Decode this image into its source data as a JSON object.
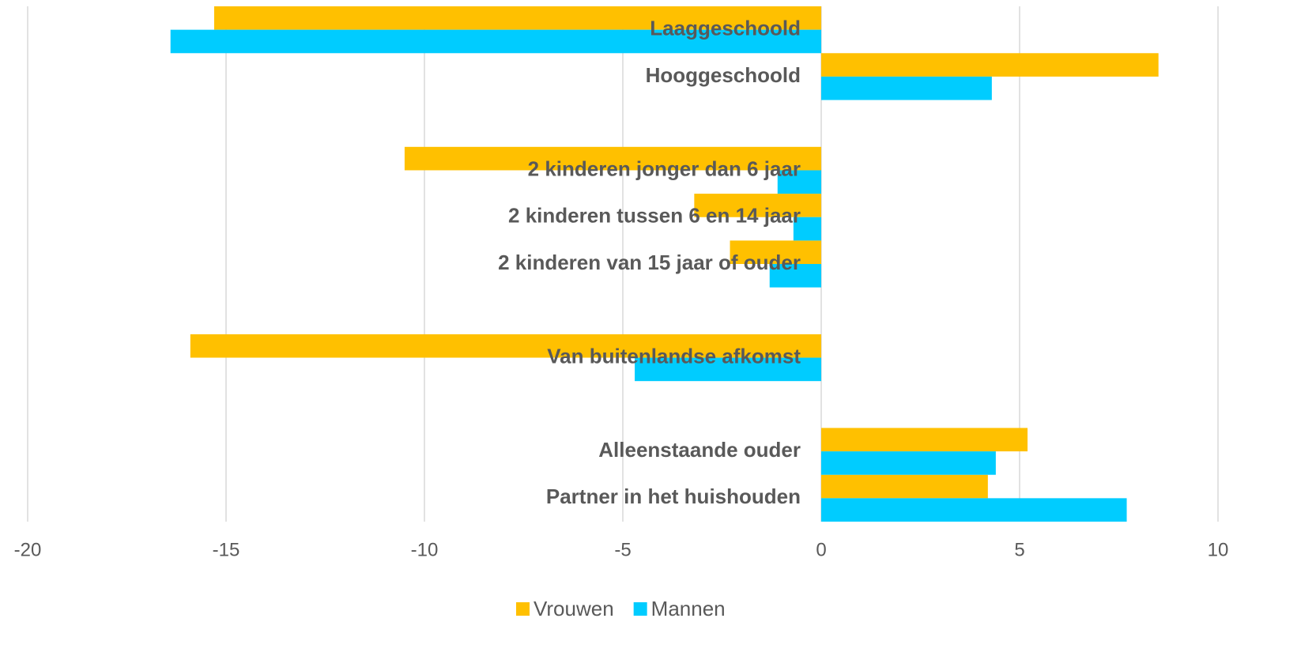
{
  "chart_data": {
    "type": "bar",
    "orientation": "horizontal",
    "categories": [
      "Laaggeschoold",
      "Hooggeschoold",
      null,
      "2 kinderen jonger dan 6 jaar",
      "2 kinderen tussen 6 en 14 jaar",
      "2 kinderen van 15 jaar of ouder",
      null,
      "Van buitenlandse afkomst",
      null,
      "Alleenstaande ouder",
      "Partner in het huishouden"
    ],
    "series": [
      {
        "name": "Vrouwen",
        "color": "#FFC000",
        "values": [
          -15.3,
          8.5,
          null,
          -10.5,
          -3.2,
          -2.3,
          null,
          -15.9,
          null,
          5.2,
          4.2
        ]
      },
      {
        "name": "Mannen",
        "color": "#00CCFF",
        "values": [
          -16.4,
          4.3,
          null,
          -1.1,
          -0.7,
          -1.3,
          null,
          -4.7,
          null,
          4.4,
          7.7
        ]
      }
    ],
    "xlim": [
      -20,
      10
    ],
    "xticks": [
      -20,
      -15,
      -10,
      -5,
      0,
      5,
      10
    ],
    "grid": true,
    "legend": "bottom"
  }
}
